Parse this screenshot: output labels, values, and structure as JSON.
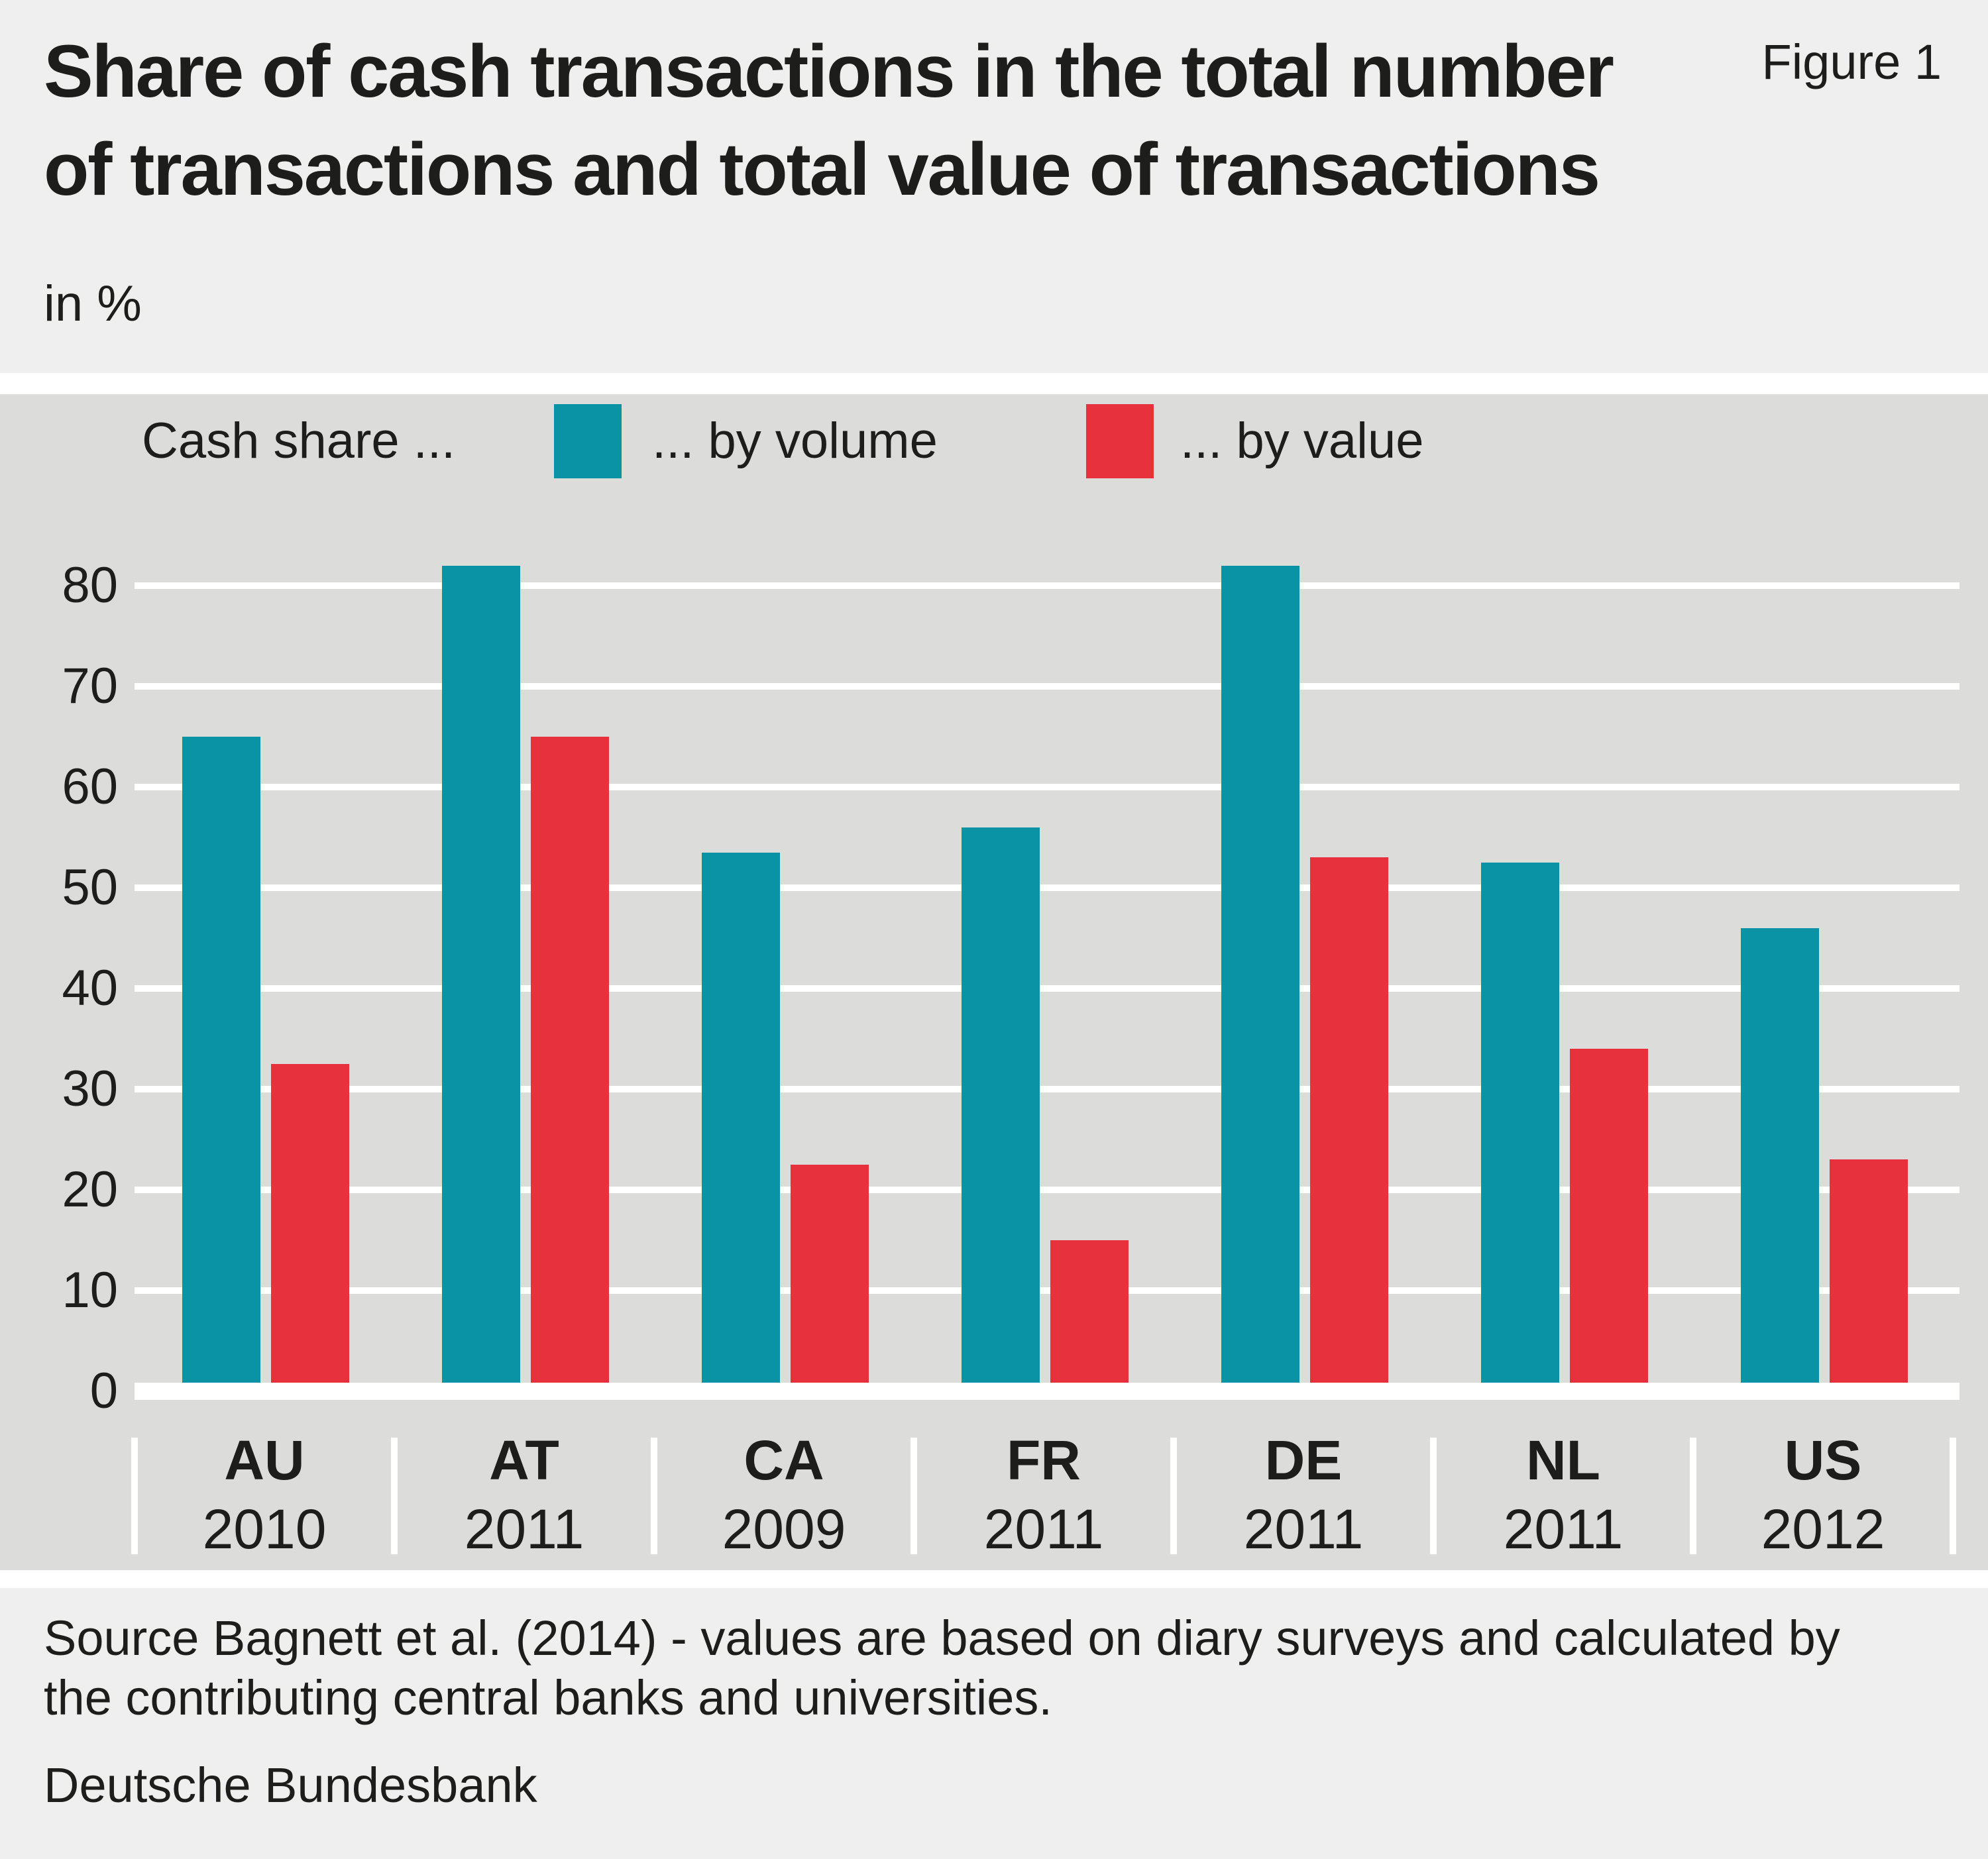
{
  "header": {
    "title_line1": "Share of cash transactions in the total number",
    "title_line2": "of transactions and total value of transactions",
    "figure_tag": "Figure 1",
    "unit_label": "in %"
  },
  "legend": {
    "prefix_label": "Cash share ...",
    "volume_label": "... by volume",
    "value_label": "... by value"
  },
  "chart_data": {
    "type": "bar",
    "title": "Share of cash transactions in the total number of transactions and total value of transactions",
    "unit": "%",
    "ylabel": "in %",
    "xlabel": "",
    "ylim": [
      0,
      80
    ],
    "yticks": [
      0,
      10,
      20,
      30,
      40,
      50,
      60,
      70,
      80
    ],
    "grid": "horizontal white gridlines on gray panel",
    "legend_position": "top inside panel",
    "categories": [
      "AU",
      "AT",
      "CA",
      "FR",
      "DE",
      "NL",
      "US"
    ],
    "category_years": [
      "2010",
      "2011",
      "2009",
      "2011",
      "2011",
      "2011",
      "2012"
    ],
    "series": [
      {
        "name": "Cash share ... by volume",
        "color": "#0a93a4",
        "values": [
          65,
          82,
          53.5,
          56,
          82,
          52.5,
          46
        ]
      },
      {
        "name": "Cash share ... by value",
        "color": "#e7323e",
        "values": [
          32.5,
          65,
          22.5,
          15,
          53,
          34,
          23
        ]
      }
    ]
  },
  "footer": {
    "source_line1": "Source Bagnett et al. (2014) - values are based on diary surveys and calculated by",
    "source_line2": "the contributing central banks and universities.",
    "publisher": "Deutsche Bundesbank"
  },
  "colors": {
    "volume_teal": "#0a93a4",
    "value_red": "#e7323e",
    "panel_gray": "#dcdcdb",
    "page_gray": "#f0efef",
    "text": "#1d1d1b",
    "grid_white": "#ffffff"
  }
}
